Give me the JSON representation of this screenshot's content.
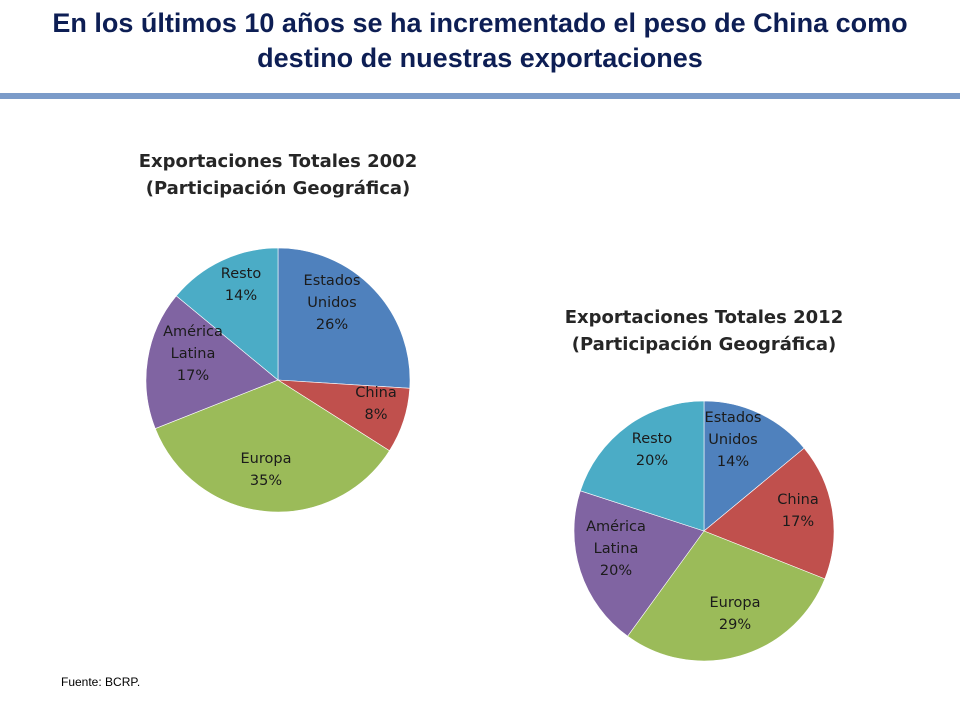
{
  "slide": {
    "title_line1": "En los últimos 10 años se ha incrementado el peso de China como",
    "title_line2": "destino de nuestras exportaciones",
    "source": "Fuente: BCRP."
  },
  "colors": {
    "title": "#0d1e54",
    "divider": "#7b9bc9"
  },
  "chart_data": [
    {
      "type": "pie",
      "title_lines": [
        "Exportaciones Totales 2002",
        "(Participación  Geográfica)"
      ],
      "start_angle": "12 o'clock, clockwise",
      "slices": [
        {
          "label_lines": [
            "Estados",
            "Unidos",
            "26%"
          ],
          "value": 26,
          "color": "#4f81bd"
        },
        {
          "label_lines": [
            "China",
            "8%"
          ],
          "value": 8,
          "color": "#c0504d"
        },
        {
          "label_lines": [
            "Europa",
            "35%"
          ],
          "value": 35,
          "color": "#9bbb59"
        },
        {
          "label_lines": [
            "América",
            "Latina",
            "17%"
          ],
          "value": 17,
          "color": "#8064a2"
        },
        {
          "label_lines": [
            "Resto",
            "14%"
          ],
          "value": 14,
          "color": "#4bacc6"
        }
      ]
    },
    {
      "type": "pie",
      "title_lines": [
        "Exportaciones Totales 2012",
        "(Participación  Geográfica)"
      ],
      "start_angle": "12 o'clock, clockwise",
      "slices": [
        {
          "label_lines": [
            "Estados",
            "Unidos",
            "14%"
          ],
          "value": 14,
          "color": "#4f81bd"
        },
        {
          "label_lines": [
            "China",
            "17%"
          ],
          "value": 17,
          "color": "#c0504d"
        },
        {
          "label_lines": [
            "Europa",
            "29%"
          ],
          "value": 29,
          "color": "#9bbb59"
        },
        {
          "label_lines": [
            "América",
            "Latina",
            "20%"
          ],
          "value": 20,
          "color": "#8064a2"
        },
        {
          "label_lines": [
            "Resto",
            "20%"
          ],
          "value": 20,
          "color": "#4bacc6"
        }
      ]
    }
  ]
}
